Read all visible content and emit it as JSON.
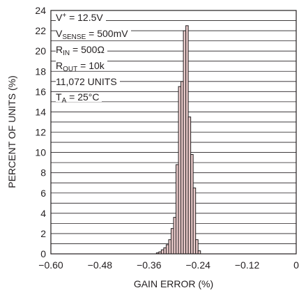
{
  "chart_data": {
    "type": "bar",
    "xlabel": "GAIN ERROR (%)",
    "ylabel": "PERCENT OF UNITS (%)",
    "xlim": [
      -0.6,
      0
    ],
    "ylim": [
      0,
      24
    ],
    "x_ticks": [
      "−0.60",
      "−0.48",
      "−0.36",
      "−0.24",
      "−0.12",
      "0"
    ],
    "y_ticks": [
      "0",
      "2",
      "4",
      "6",
      "8",
      "10",
      "12",
      "14",
      "16",
      "18",
      "20",
      "22",
      "24"
    ],
    "grid": "horizontal",
    "bin_width": 0.006,
    "bins": [
      {
        "x": -0.339,
        "y": 0.1
      },
      {
        "x": -0.333,
        "y": 0.2
      },
      {
        "x": -0.327,
        "y": 0.4
      },
      {
        "x": -0.321,
        "y": 0.6
      },
      {
        "x": -0.315,
        "y": 0.9
      },
      {
        "x": -0.309,
        "y": 1.4
      },
      {
        "x": -0.303,
        "y": 2.5
      },
      {
        "x": -0.297,
        "y": 3.6
      },
      {
        "x": -0.291,
        "y": 8.8
      },
      {
        "x": -0.285,
        "y": 16.5
      },
      {
        "x": -0.279,
        "y": 17.0
      },
      {
        "x": -0.273,
        "y": 22.0
      },
      {
        "x": -0.267,
        "y": 22.5
      },
      {
        "x": -0.261,
        "y": 13.5
      },
      {
        "x": -0.255,
        "y": 9.8
      },
      {
        "x": -0.249,
        "y": 6.5
      },
      {
        "x": -0.243,
        "y": 1.4
      },
      {
        "x": -0.237,
        "y": 0.3
      }
    ],
    "conditions": {
      "vplus": {
        "main": "V",
        "sup": "+",
        "rest": " = 12.5V"
      },
      "vsense": {
        "main": "V",
        "sub": "SENSE",
        "rest": " = 500mV"
      },
      "rin": {
        "main": "R",
        "sub": "IN",
        "rest": " = 500Ω"
      },
      "rout": {
        "main": "R",
        "sub": "OUT",
        "rest": " = 10k"
      },
      "units": {
        "main": "11,072 UNITS"
      },
      "ta": {
        "main": "T",
        "sub": "A",
        "rest": " = 25°C"
      }
    }
  },
  "colors": {
    "bar_fill": "#ebcbcb",
    "bar_stroke": "#231f20",
    "grid": "#231f20",
    "text": "#231f20"
  }
}
